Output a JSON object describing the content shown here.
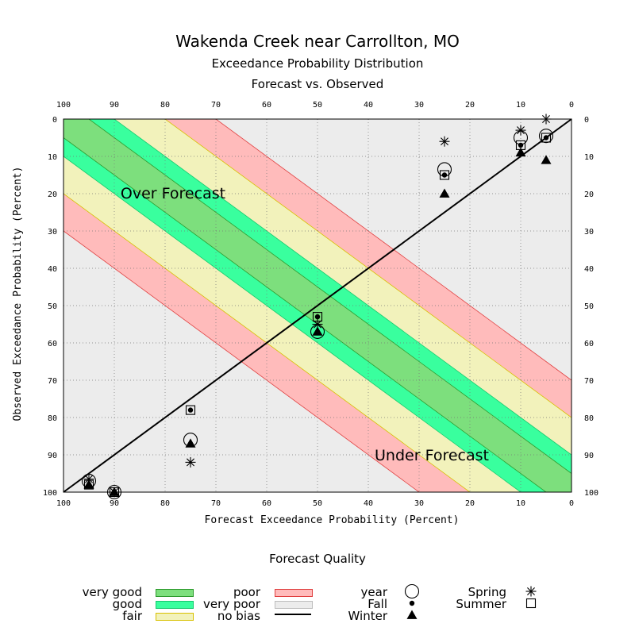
{
  "chart_data": {
    "type": "scatter",
    "title": "Wakenda Creek near Carrollton, MO",
    "subtitle1": "Exceedance Probability Distribution",
    "subtitle2": "Forecast vs. Observed",
    "xlabel": "Forecast Exceedance Probability (Percent)",
    "ylabel": "Observed Exceedance Probability (Percent)",
    "xlim": [
      100,
      0
    ],
    "ylim": [
      100,
      0
    ],
    "x_ticks": [
      100,
      90,
      80,
      70,
      60,
      50,
      40,
      30,
      20,
      10,
      0
    ],
    "y_ticks": [
      0,
      10,
      20,
      30,
      40,
      50,
      60,
      70,
      80,
      90,
      100
    ],
    "grid": true,
    "annotations": [
      "Over Forecast",
      "Under Forecast"
    ],
    "bands": [
      {
        "name": "very good",
        "offset": 5,
        "color": "#7ddf7d"
      },
      {
        "name": "good",
        "offset": 10,
        "color": "#39ff9e"
      },
      {
        "name": "fair",
        "offset": 20,
        "color": "#f2f2bb"
      },
      {
        "name": "poor",
        "offset": 30,
        "color": "#ffbbbb"
      }
    ],
    "series": [
      {
        "name": "year",
        "marker": "circle",
        "x": [
          95,
          90,
          75,
          50,
          25,
          10,
          5
        ],
        "y": [
          97,
          100,
          86,
          57,
          13.5,
          5,
          4.5
        ]
      },
      {
        "name": "Fall",
        "marker": "dot",
        "x": [
          95,
          90,
          75,
          50,
          25,
          10,
          5
        ],
        "y": [
          98,
          100,
          78,
          53,
          15,
          7,
          5
        ]
      },
      {
        "name": "Winter",
        "marker": "triangle",
        "x": [
          95,
          90,
          75,
          50,
          25,
          10,
          5
        ],
        "y": [
          98,
          100,
          87,
          57,
          20,
          9,
          11
        ]
      },
      {
        "name": "Spring",
        "marker": "asterisk",
        "x": [
          95,
          90,
          75,
          50,
          25,
          10,
          5
        ],
        "y": [
          96.5,
          100,
          92,
          55,
          6,
          3,
          0
        ]
      },
      {
        "name": "Summer",
        "marker": "square",
        "x": [
          95,
          90,
          75,
          50,
          25,
          10,
          5
        ],
        "y": [
          98,
          100,
          78,
          53,
          15,
          7,
          5
        ]
      }
    ]
  },
  "legend": {
    "title": "Forecast Quality",
    "quality": [
      {
        "label": "very good",
        "color": "#7ddf7d",
        "border": "#2e9a2e"
      },
      {
        "label": "good",
        "color": "#39ff9e",
        "border": "#16c86e"
      },
      {
        "label": "fair",
        "color": "#f2f2bb",
        "border": "#d8c000"
      },
      {
        "label": "poor",
        "color": "#ffbbbb",
        "border": "#e04040"
      },
      {
        "label": "very poor",
        "color": "#ececec",
        "border": "#bdbdbd"
      },
      {
        "label": "no bias",
        "color": "#000000",
        "border": "#000000"
      }
    ],
    "markers": [
      {
        "label": "year",
        "marker": "circle"
      },
      {
        "label": "Fall",
        "marker": "dot"
      },
      {
        "label": "Winter",
        "marker": "triangle"
      },
      {
        "label": "Spring",
        "marker": "asterisk"
      },
      {
        "label": "Summer",
        "marker": "square"
      }
    ]
  }
}
